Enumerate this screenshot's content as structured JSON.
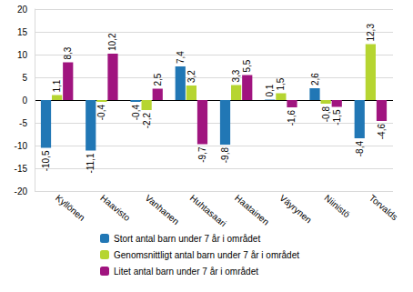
{
  "chart_data": {
    "type": "bar",
    "categories": [
      "Kyllönen",
      "Haavisto",
      "Vanhanen",
      "Huhtasaari",
      "Haatainen",
      "Väyrynen",
      "Niinistö",
      "Torvalds"
    ],
    "series": [
      {
        "name": "Stort antal barn under 7 år i området",
        "color": "#2177b5",
        "values": [
          -10.5,
          -11.1,
          -0.4,
          7.4,
          -9.8,
          0.1,
          2.6,
          -8.4
        ],
        "value_labels": [
          "-10,5",
          "-11,1",
          "-0,4",
          "7,4",
          "-9,8",
          "0,1",
          "2,6",
          "-8,4"
        ]
      },
      {
        "name": "Genomsnittligt antal barn under 7 år i området",
        "color": "#b6d531",
        "values": [
          1.1,
          -0.4,
          -2.2,
          3.2,
          3.3,
          1.5,
          -0.8,
          12.3
        ],
        "value_labels": [
          "1,1",
          "-0,4",
          "-2,2",
          "3,2",
          "3,3",
          "1,5",
          "-0,8",
          "12,3"
        ]
      },
      {
        "name": "Litet antal barn under 7 år i området",
        "color": "#a0147f",
        "values": [
          8.3,
          10.2,
          2.5,
          -9.7,
          5.5,
          -1.6,
          -1.5,
          -4.6
        ],
        "value_labels": [
          "8,3",
          "10,2",
          "2,5",
          "-9,7",
          "5,5",
          "-1,6",
          "-1,5",
          "-4,6"
        ]
      }
    ],
    "ylim": [
      -20,
      20
    ],
    "yticks": [
      -20,
      -15,
      -10,
      -5,
      0,
      5,
      10,
      15,
      20
    ],
    "grid": true,
    "data_labels": true,
    "legend": "bottom"
  }
}
